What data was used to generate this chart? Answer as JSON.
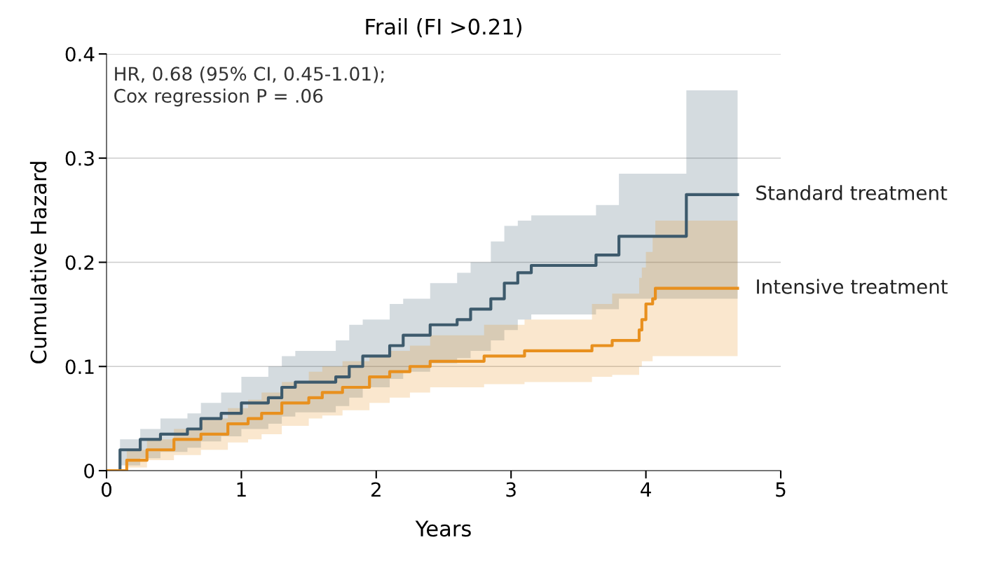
{
  "chart_data": {
    "type": "step",
    "title": "Frail (FI >0.21)",
    "xlabel": "Years",
    "ylabel": "Cumulative Hazard",
    "annotations": [
      "HR, 0.68 (95% CI, 0.45-1.01);\nCox regression P = .06"
    ],
    "xlim": [
      0,
      5
    ],
    "xticks": [
      0,
      1,
      2,
      3,
      4,
      5
    ],
    "ylim": [
      0,
      0.4
    ],
    "yticks": [
      0,
      0.1,
      0.2,
      0.3,
      0.4
    ],
    "grid": "y",
    "legend": false,
    "series": [
      {
        "name": "Standard treatment",
        "color": "#3d5a6c",
        "x": [
          0,
          0.1,
          0.25,
          0.4,
          0.6,
          0.7,
          0.85,
          1.0,
          1.2,
          1.3,
          1.4,
          1.7,
          1.8,
          1.9,
          2.1,
          2.2,
          2.4,
          2.6,
          2.7,
          2.85,
          2.95,
          3.05,
          3.15,
          3.63,
          3.8,
          4.3,
          4.68
        ],
        "values": [
          0,
          0.02,
          0.03,
          0.035,
          0.04,
          0.05,
          0.055,
          0.065,
          0.07,
          0.08,
          0.085,
          0.09,
          0.1,
          0.11,
          0.12,
          0.13,
          0.14,
          0.145,
          0.155,
          0.165,
          0.18,
          0.19,
          0.197,
          0.207,
          0.225,
          0.265,
          0.265
        ],
        "upper": [
          0,
          0.03,
          0.04,
          0.05,
          0.055,
          0.065,
          0.075,
          0.09,
          0.1,
          0.11,
          0.115,
          0.125,
          0.14,
          0.145,
          0.16,
          0.165,
          0.18,
          0.19,
          0.2,
          0.22,
          0.235,
          0.24,
          0.245,
          0.255,
          0.285,
          0.365,
          0.365
        ],
        "lower": [
          0,
          0.005,
          0.012,
          0.018,
          0.022,
          0.028,
          0.033,
          0.04,
          0.045,
          0.052,
          0.056,
          0.062,
          0.07,
          0.08,
          0.088,
          0.095,
          0.103,
          0.108,
          0.115,
          0.125,
          0.135,
          0.145,
          0.15,
          0.155,
          0.165,
          0.165,
          0.165
        ]
      },
      {
        "name": "Intensive treatment",
        "color": "#e8901e",
        "x": [
          0,
          0.15,
          0.3,
          0.5,
          0.7,
          0.9,
          1.05,
          1.15,
          1.3,
          1.5,
          1.6,
          1.75,
          1.95,
          2.1,
          2.25,
          2.4,
          2.8,
          3.1,
          3.6,
          3.75,
          3.95,
          3.97,
          4.0,
          4.05,
          4.07,
          4.68
        ],
        "values": [
          0,
          0.01,
          0.02,
          0.03,
          0.035,
          0.045,
          0.05,
          0.055,
          0.065,
          0.07,
          0.075,
          0.08,
          0.09,
          0.095,
          0.1,
          0.105,
          0.11,
          0.115,
          0.12,
          0.125,
          0.135,
          0.145,
          0.16,
          0.165,
          0.175,
          0.175
        ],
        "upper": [
          0,
          0.02,
          0.03,
          0.04,
          0.05,
          0.06,
          0.068,
          0.075,
          0.085,
          0.095,
          0.1,
          0.105,
          0.11,
          0.115,
          0.12,
          0.13,
          0.14,
          0.145,
          0.16,
          0.17,
          0.185,
          0.195,
          0.21,
          0.225,
          0.24,
          0.24
        ],
        "lower": [
          0,
          0.003,
          0.01,
          0.015,
          0.02,
          0.027,
          0.03,
          0.035,
          0.043,
          0.05,
          0.053,
          0.058,
          0.065,
          0.07,
          0.075,
          0.08,
          0.083,
          0.085,
          0.09,
          0.092,
          0.1,
          0.105,
          0.105,
          0.11,
          0.11,
          0.11
        ]
      }
    ]
  }
}
